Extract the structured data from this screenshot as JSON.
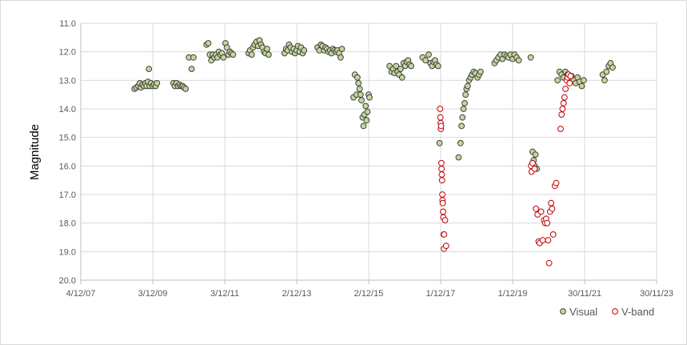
{
  "chart_data": {
    "type": "scatter",
    "ylabel": "Magnitude",
    "y_reversed": true,
    "ylim": [
      11.0,
      20.0
    ],
    "yticks": [
      "11.0",
      "12.0",
      "13.0",
      "14.0",
      "15.0",
      "16.0",
      "17.0",
      "18.0",
      "19.0",
      "20.0"
    ],
    "xlim": [
      "2007-12-04",
      "2023-11-30"
    ],
    "xticks": [
      "4/12/07",
      "3/12/09",
      "3/12/11",
      "2/12/13",
      "2/12/15",
      "1/12/17",
      "1/12/19",
      "30/11/21",
      "30/11/23"
    ],
    "xtick_dates": [
      "2007-12-04",
      "2009-12-03",
      "2011-12-03",
      "2013-12-02",
      "2015-12-02",
      "2017-12-01",
      "2019-12-01",
      "2021-11-30",
      "2023-11-30"
    ],
    "grid": true,
    "legend_position": "bottom-right",
    "series": [
      {
        "name": "Visual",
        "marker": "filled-circle",
        "fill": "#c4d79b",
        "stroke": "#404040",
        "points": [
          [
            "2009-06-01",
            13.3
          ],
          [
            "2009-06-20",
            13.25
          ],
          [
            "2009-07-10",
            13.2
          ],
          [
            "2009-07-25",
            13.1
          ],
          [
            "2009-08-05",
            13.25
          ],
          [
            "2009-08-20",
            13.15
          ],
          [
            "2009-09-05",
            13.2
          ],
          [
            "2009-09-20",
            13.1
          ],
          [
            "2009-10-01",
            13.2
          ],
          [
            "2009-10-15",
            13.05
          ],
          [
            "2009-10-25",
            12.6
          ],
          [
            "2009-11-01",
            13.2
          ],
          [
            "2009-11-15",
            13.1
          ],
          [
            "2009-12-01",
            13.2
          ],
          [
            "2009-12-15",
            13.15
          ],
          [
            "2010-01-01",
            13.2
          ],
          [
            "2010-01-15",
            13.1
          ],
          [
            "2010-07-01",
            13.1
          ],
          [
            "2010-07-15",
            13.2
          ],
          [
            "2010-08-01",
            13.1
          ],
          [
            "2010-08-15",
            13.2
          ],
          [
            "2010-09-01",
            13.15
          ],
          [
            "2010-09-15",
            13.2
          ],
          [
            "2010-10-01",
            13.2
          ],
          [
            "2010-10-15",
            13.25
          ],
          [
            "2010-11-01",
            13.3
          ],
          [
            "2010-12-05",
            12.2
          ],
          [
            "2011-01-01",
            12.6
          ],
          [
            "2011-01-20",
            12.2
          ],
          [
            "2011-06-01",
            11.75
          ],
          [
            "2011-06-20",
            11.7
          ],
          [
            "2011-07-05",
            12.1
          ],
          [
            "2011-07-20",
            12.3
          ],
          [
            "2011-08-05",
            12.1
          ],
          [
            "2011-08-20",
            12.2
          ],
          [
            "2011-09-05",
            12.1
          ],
          [
            "2011-09-20",
            12.2
          ],
          [
            "2011-10-05",
            12.0
          ],
          [
            "2011-10-20",
            12.1
          ],
          [
            "2011-11-05",
            12.05
          ],
          [
            "2011-11-20",
            12.2
          ],
          [
            "2011-12-10",
            11.7
          ],
          [
            "2011-12-25",
            11.85
          ],
          [
            "2012-01-10",
            12.1
          ],
          [
            "2012-01-25",
            12.0
          ],
          [
            "2012-02-10",
            12.05
          ],
          [
            "2012-02-25",
            12.1
          ],
          [
            "2012-08-01",
            12.05
          ],
          [
            "2012-08-15",
            11.95
          ],
          [
            "2012-09-01",
            12.1
          ],
          [
            "2012-09-15",
            11.85
          ],
          [
            "2012-10-01",
            11.75
          ],
          [
            "2012-10-20",
            11.65
          ],
          [
            "2012-11-05",
            11.8
          ],
          [
            "2012-11-20",
            11.6
          ],
          [
            "2012-12-05",
            11.75
          ],
          [
            "2012-12-20",
            11.85
          ],
          [
            "2013-01-05",
            12.0
          ],
          [
            "2013-01-20",
            12.05
          ],
          [
            "2013-02-05",
            11.9
          ],
          [
            "2013-02-20",
            12.1
          ],
          [
            "2013-08-01",
            12.05
          ],
          [
            "2013-08-15",
            11.9
          ],
          [
            "2013-09-01",
            11.95
          ],
          [
            "2013-09-15",
            11.75
          ],
          [
            "2013-10-01",
            11.85
          ],
          [
            "2013-10-15",
            12.0
          ],
          [
            "2013-11-01",
            11.9
          ],
          [
            "2013-11-15",
            12.05
          ],
          [
            "2013-12-01",
            11.95
          ],
          [
            "2013-12-15",
            11.8
          ],
          [
            "2014-01-01",
            12.0
          ],
          [
            "2014-01-15",
            11.85
          ],
          [
            "2014-02-01",
            12.05
          ],
          [
            "2014-02-15",
            11.95
          ],
          [
            "2014-07-01",
            11.85
          ],
          [
            "2014-07-20",
            11.95
          ],
          [
            "2014-08-05",
            11.75
          ],
          [
            "2014-08-20",
            11.8
          ],
          [
            "2014-09-05",
            11.95
          ],
          [
            "2014-09-20",
            11.85
          ],
          [
            "2014-10-05",
            11.9
          ],
          [
            "2014-10-20",
            12.0
          ],
          [
            "2014-11-05",
            11.95
          ],
          [
            "2014-11-20",
            12.05
          ],
          [
            "2014-12-05",
            11.9
          ],
          [
            "2014-12-20",
            11.95
          ],
          [
            "2015-01-05",
            12.0
          ],
          [
            "2015-01-20",
            11.95
          ],
          [
            "2015-02-05",
            12.05
          ],
          [
            "2015-02-20",
            12.2
          ],
          [
            "2015-03-05",
            11.9
          ],
          [
            "2015-07-01",
            13.6
          ],
          [
            "2015-07-15",
            12.8
          ],
          [
            "2015-08-01",
            13.5
          ],
          [
            "2015-08-10",
            12.9
          ],
          [
            "2015-08-20",
            13.1
          ],
          [
            "2015-09-01",
            13.3
          ],
          [
            "2015-09-10",
            13.5
          ],
          [
            "2015-09-20",
            13.7
          ],
          [
            "2015-10-01",
            14.3
          ],
          [
            "2015-10-10",
            14.6
          ],
          [
            "2015-10-20",
            14.2
          ],
          [
            "2015-11-01",
            13.9
          ],
          [
            "2015-11-10",
            14.4
          ],
          [
            "2015-11-20",
            14.1
          ],
          [
            "2015-12-01",
            13.5
          ],
          [
            "2015-12-10",
            13.6
          ],
          [
            "2016-07-01",
            12.5
          ],
          [
            "2016-07-20",
            12.7
          ],
          [
            "2016-08-05",
            12.6
          ],
          [
            "2016-08-20",
            12.75
          ],
          [
            "2016-09-05",
            12.5
          ],
          [
            "2016-09-20",
            12.7
          ],
          [
            "2016-10-05",
            12.8
          ],
          [
            "2016-10-20",
            12.6
          ],
          [
            "2016-11-05",
            12.9
          ],
          [
            "2016-11-20",
            12.4
          ],
          [
            "2016-12-05",
            12.5
          ],
          [
            "2016-12-20",
            12.35
          ],
          [
            "2017-01-05",
            12.3
          ],
          [
            "2017-01-20",
            12.45
          ],
          [
            "2017-02-05",
            12.5
          ],
          [
            "2017-06-01",
            12.2
          ],
          [
            "2017-07-01",
            12.3
          ],
          [
            "2017-08-01",
            12.1
          ],
          [
            "2017-08-20",
            12.4
          ],
          [
            "2017-09-05",
            12.5
          ],
          [
            "2017-09-20",
            12.35
          ],
          [
            "2017-10-05",
            12.3
          ],
          [
            "2017-10-20",
            12.45
          ],
          [
            "2017-11-05",
            12.5
          ],
          [
            "2017-11-20",
            15.2
          ],
          [
            "2018-06-01",
            15.7
          ],
          [
            "2018-06-20",
            15.2
          ],
          [
            "2018-07-01",
            14.6
          ],
          [
            "2018-07-10",
            14.3
          ],
          [
            "2018-07-20",
            14.0
          ],
          [
            "2018-08-01",
            13.8
          ],
          [
            "2018-08-10",
            13.5
          ],
          [
            "2018-08-20",
            13.3
          ],
          [
            "2018-09-01",
            13.2
          ],
          [
            "2018-09-15",
            13.0
          ],
          [
            "2018-10-01",
            12.9
          ],
          [
            "2018-10-15",
            12.8
          ],
          [
            "2018-11-01",
            12.7
          ],
          [
            "2018-11-20",
            12.75
          ],
          [
            "2018-12-10",
            12.9
          ],
          [
            "2018-12-25",
            12.8
          ],
          [
            "2019-01-10",
            12.7
          ],
          [
            "2019-06-01",
            12.4
          ],
          [
            "2019-06-20",
            12.3
          ],
          [
            "2019-07-10",
            12.2
          ],
          [
            "2019-08-01",
            12.1
          ],
          [
            "2019-08-20",
            12.25
          ],
          [
            "2019-09-10",
            12.1
          ],
          [
            "2019-10-01",
            12.15
          ],
          [
            "2019-10-20",
            12.2
          ],
          [
            "2019-11-10",
            12.1
          ],
          [
            "2019-12-01",
            12.25
          ],
          [
            "2019-12-20",
            12.1
          ],
          [
            "2020-01-10",
            12.2
          ],
          [
            "2020-02-01",
            12.3
          ],
          [
            "2020-06-01",
            12.2
          ],
          [
            "2020-06-20",
            15.5
          ],
          [
            "2020-07-01",
            15.8
          ],
          [
            "2020-07-10",
            16.0
          ],
          [
            "2020-07-20",
            15.6
          ],
          [
            "2020-08-01",
            16.1
          ],
          [
            "2021-03-01",
            13.0
          ],
          [
            "2021-03-20",
            12.7
          ],
          [
            "2021-04-10",
            12.8
          ],
          [
            "2021-05-01",
            12.9
          ],
          [
            "2021-05-20",
            12.7
          ],
          [
            "2021-06-10",
            12.8
          ],
          [
            "2021-07-01",
            12.95
          ],
          [
            "2021-07-20",
            12.85
          ],
          [
            "2021-08-10",
            13.0
          ],
          [
            "2021-09-01",
            13.1
          ],
          [
            "2021-09-20",
            12.9
          ],
          [
            "2021-10-10",
            13.05
          ],
          [
            "2021-11-01",
            13.2
          ],
          [
            "2021-11-20",
            13.0
          ],
          [
            "2022-06-01",
            12.8
          ],
          [
            "2022-06-20",
            13.0
          ],
          [
            "2022-07-10",
            12.7
          ],
          [
            "2022-08-01",
            12.5
          ],
          [
            "2022-08-20",
            12.4
          ],
          [
            "2022-09-10",
            12.55
          ]
        ]
      },
      {
        "name": "V-band",
        "marker": "open-circle",
        "fill": "#ffffff",
        "stroke": "#c00000",
        "points": [
          [
            "2017-11-25",
            14.0
          ],
          [
            "2017-11-28",
            14.3
          ],
          [
            "2017-12-01",
            14.5
          ],
          [
            "2017-12-03",
            14.7
          ],
          [
            "2017-12-05",
            14.6
          ],
          [
            "2017-12-08",
            15.9
          ],
          [
            "2017-12-10",
            16.1
          ],
          [
            "2017-12-12",
            16.3
          ],
          [
            "2017-12-15",
            16.5
          ],
          [
            "2017-12-18",
            17.0
          ],
          [
            "2017-12-20",
            17.2
          ],
          [
            "2017-12-22",
            17.3
          ],
          [
            "2017-12-25",
            17.6
          ],
          [
            "2017-12-28",
            17.8
          ],
          [
            "2018-01-01",
            18.4
          ],
          [
            "2018-01-03",
            18.9
          ],
          [
            "2018-01-05",
            18.4
          ],
          [
            "2018-01-15",
            17.9
          ],
          [
            "2018-01-25",
            18.8
          ],
          [
            "2020-06-05",
            16.0
          ],
          [
            "2020-06-10",
            16.2
          ],
          [
            "2020-06-20",
            15.9
          ],
          [
            "2020-07-10",
            16.1
          ],
          [
            "2020-07-25",
            17.5
          ],
          [
            "2020-08-10",
            17.7
          ],
          [
            "2020-08-20",
            18.65
          ],
          [
            "2020-09-01",
            18.7
          ],
          [
            "2020-09-15",
            17.6
          ],
          [
            "2020-10-01",
            18.6
          ],
          [
            "2020-10-15",
            17.9
          ],
          [
            "2020-10-25",
            18.0
          ],
          [
            "2020-11-05",
            17.85
          ],
          [
            "2020-11-15",
            18.0
          ],
          [
            "2020-11-25",
            18.6
          ],
          [
            "2020-12-05",
            19.4
          ],
          [
            "2020-12-15",
            17.6
          ],
          [
            "2020-12-25",
            17.3
          ],
          [
            "2021-01-05",
            17.5
          ],
          [
            "2021-01-15",
            18.4
          ],
          [
            "2021-02-01",
            16.7
          ],
          [
            "2021-02-15",
            16.6
          ],
          [
            "2021-04-01",
            14.7
          ],
          [
            "2021-04-10",
            14.2
          ],
          [
            "2021-04-20",
            14.0
          ],
          [
            "2021-05-01",
            13.8
          ],
          [
            "2021-05-10",
            13.6
          ],
          [
            "2021-05-20",
            13.3
          ],
          [
            "2021-06-01",
            13.0
          ],
          [
            "2021-06-10",
            12.9
          ],
          [
            "2021-06-20",
            12.8
          ],
          [
            "2021-07-01",
            13.1
          ],
          [
            "2021-07-10",
            12.85
          ]
        ]
      }
    ]
  }
}
